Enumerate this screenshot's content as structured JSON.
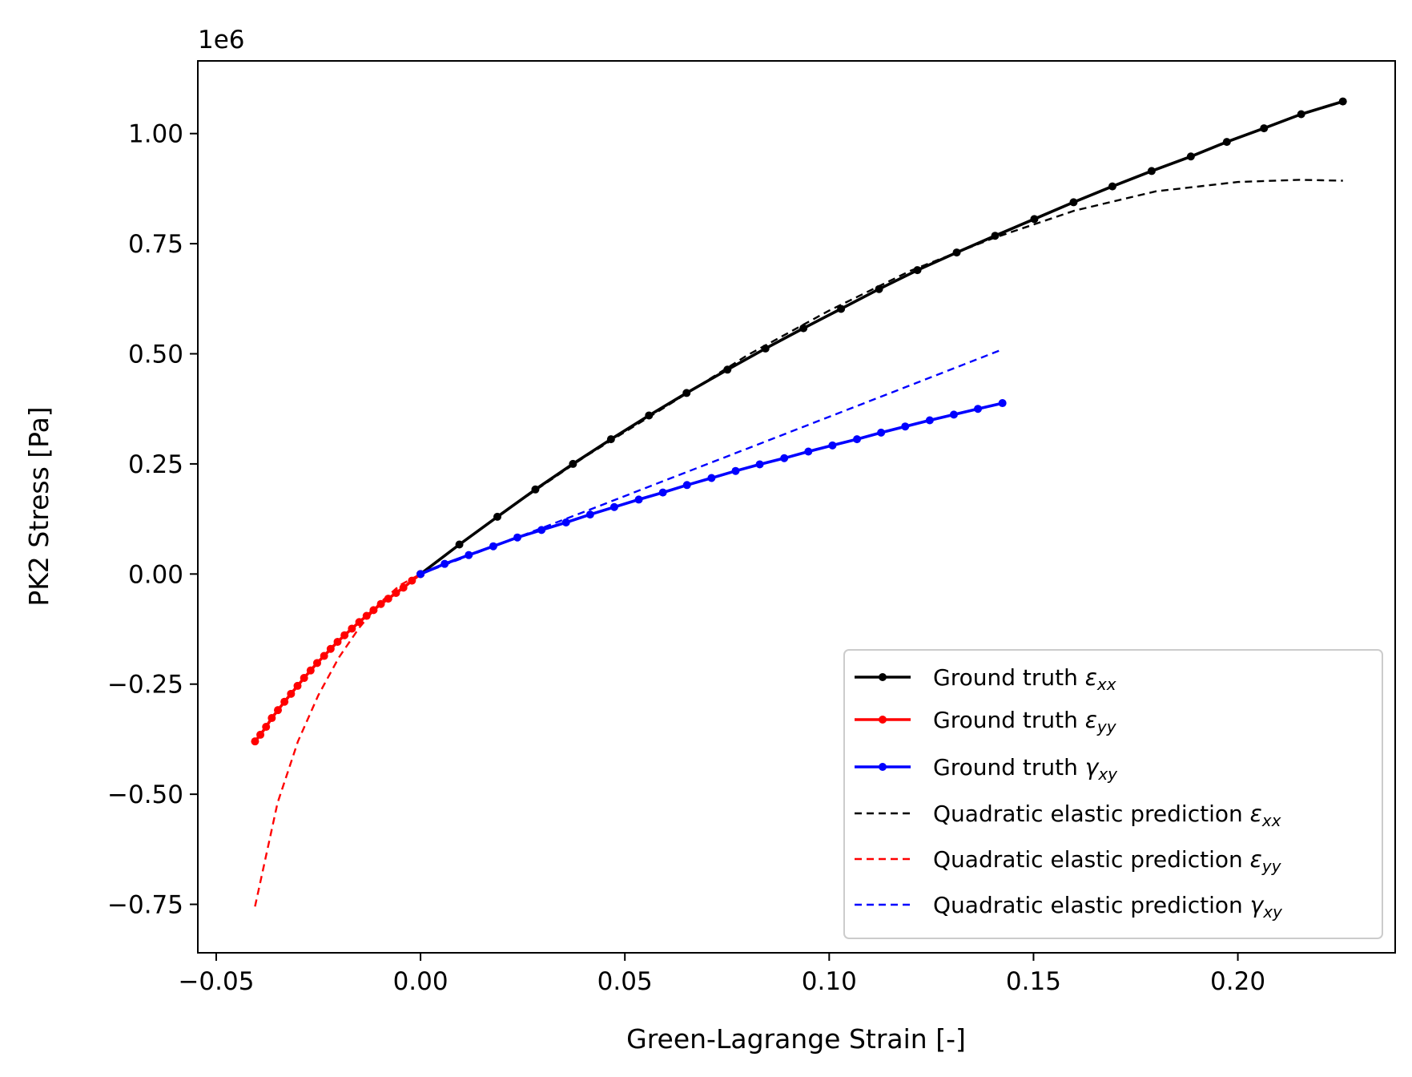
{
  "chart_data": {
    "type": "line",
    "xlabel": "Green-Lagrange Strain [-]",
    "ylabel": "PK2 Stress [Pa]",
    "offset_text": "1e6",
    "xlim": [
      -0.0545,
      0.2385
    ],
    "ylim": [
      -0.86,
      1.165
    ],
    "xticks": [
      -0.05,
      0.0,
      0.05,
      0.1,
      0.15,
      0.2
    ],
    "xtick_labels": [
      "−0.05",
      "0.00",
      "0.05",
      "0.10",
      "0.15",
      "0.20"
    ],
    "yticks": [
      -0.75,
      -0.5,
      -0.25,
      0.0,
      0.25,
      0.5,
      0.75,
      1.0
    ],
    "ytick_labels": [
      "−0.75",
      "−0.50",
      "−0.25",
      "0.00",
      "0.25",
      "0.50",
      "0.75",
      "1.00"
    ],
    "grid": false,
    "legend_position": "lower right",
    "series": [
      {
        "name": "Ground truth εxx",
        "legend_symbol": "ε",
        "legend_sub": "xx",
        "color": "#000000",
        "style": "solid-markers",
        "x": [
          0.0,
          0.0095,
          0.0188,
          0.0281,
          0.0373,
          0.0466,
          0.0559,
          0.0651,
          0.0751,
          0.0844,
          0.0937,
          0.1029,
          0.1122,
          0.1216,
          0.1312,
          0.1406,
          0.1502,
          0.1598,
          0.1693,
          0.1789,
          0.1885,
          0.1973,
          0.2064,
          0.2155,
          0.2257
        ],
        "y": [
          0.0,
          0.067,
          0.13,
          0.192,
          0.25,
          0.306,
          0.36,
          0.411,
          0.464,
          0.512,
          0.558,
          0.602,
          0.647,
          0.69,
          0.73,
          0.768,
          0.806,
          0.844,
          0.88,
          0.915,
          0.948,
          0.981,
          1.012,
          1.044,
          1.073
        ]
      },
      {
        "name": "Ground truth εyy",
        "legend_symbol": "ε",
        "legend_sub": "yy",
        "color": "#ff0000",
        "style": "solid-markers",
        "x": [
          -0.0405,
          -0.0392,
          -0.0378,
          -0.0364,
          -0.0349,
          -0.0333,
          -0.0317,
          -0.0301,
          -0.0285,
          -0.0269,
          -0.0253,
          -0.0236,
          -0.022,
          -0.0203,
          -0.0186,
          -0.0168,
          -0.015,
          -0.0132,
          -0.0115,
          -0.0097,
          -0.0079,
          -0.006,
          -0.0042,
          -0.0021,
          0.0
        ],
        "y": [
          -0.38,
          -0.365,
          -0.347,
          -0.327,
          -0.309,
          -0.29,
          -0.272,
          -0.254,
          -0.236,
          -0.219,
          -0.202,
          -0.186,
          -0.17,
          -0.154,
          -0.139,
          -0.124,
          -0.109,
          -0.095,
          -0.082,
          -0.068,
          -0.056,
          -0.043,
          -0.031,
          -0.015,
          0.0
        ]
      },
      {
        "name": "Ground truth γxy",
        "legend_symbol": "γ",
        "legend_sub": "xy",
        "color": "#0000ff",
        "style": "solid-markers",
        "x": [
          0.0,
          0.0059,
          0.0118,
          0.0178,
          0.0237,
          0.0296,
          0.0356,
          0.0415,
          0.0474,
          0.0534,
          0.0593,
          0.0652,
          0.0712,
          0.0771,
          0.083,
          0.089,
          0.0949,
          0.1008,
          0.1068,
          0.1127,
          0.1186,
          0.1246,
          0.1305,
          0.1364,
          0.1424
        ],
        "y": [
          0.0,
          0.023,
          0.043,
          0.063,
          0.083,
          0.1,
          0.117,
          0.135,
          0.152,
          0.169,
          0.185,
          0.202,
          0.218,
          0.234,
          0.249,
          0.263,
          0.278,
          0.292,
          0.306,
          0.321,
          0.335,
          0.349,
          0.362,
          0.375,
          0.388
        ]
      },
      {
        "name": "Quadratic elastic prediction εxx",
        "legend_symbol": "ε",
        "legend_sub": "xx",
        "color": "#000000",
        "style": "dashed",
        "x": [
          0.0,
          0.02,
          0.04,
          0.06,
          0.08,
          0.1,
          0.12,
          0.14,
          0.16,
          0.18,
          0.2,
          0.215,
          0.2257
        ],
        "y": [
          0.0,
          0.139,
          0.265,
          0.38,
          0.497,
          0.598,
          0.689,
          0.762,
          0.825,
          0.869,
          0.89,
          0.895,
          0.893
        ]
      },
      {
        "name": "Quadratic elastic prediction εyy",
        "legend_symbol": "ε",
        "legend_sub": "yy",
        "color": "#ff0000",
        "style": "dashed",
        "x": [
          -0.0405,
          -0.035,
          -0.03,
          -0.025,
          -0.02,
          -0.015,
          -0.01,
          -0.005,
          0.0
        ],
        "y": [
          -0.755,
          -0.52,
          -0.38,
          -0.275,
          -0.19,
          -0.122,
          -0.066,
          -0.025,
          0.0
        ]
      },
      {
        "name": "Quadratic elastic prediction γxy",
        "legend_symbol": "γ",
        "legend_sub": "xy",
        "color": "#0000ff",
        "style": "dashed",
        "x": [
          0.0,
          0.02,
          0.04,
          0.06,
          0.08,
          0.1,
          0.12,
          0.1424
        ],
        "y": [
          0.0,
          0.07,
          0.141,
          0.213,
          0.285,
          0.357,
          0.429,
          0.51
        ]
      }
    ]
  }
}
